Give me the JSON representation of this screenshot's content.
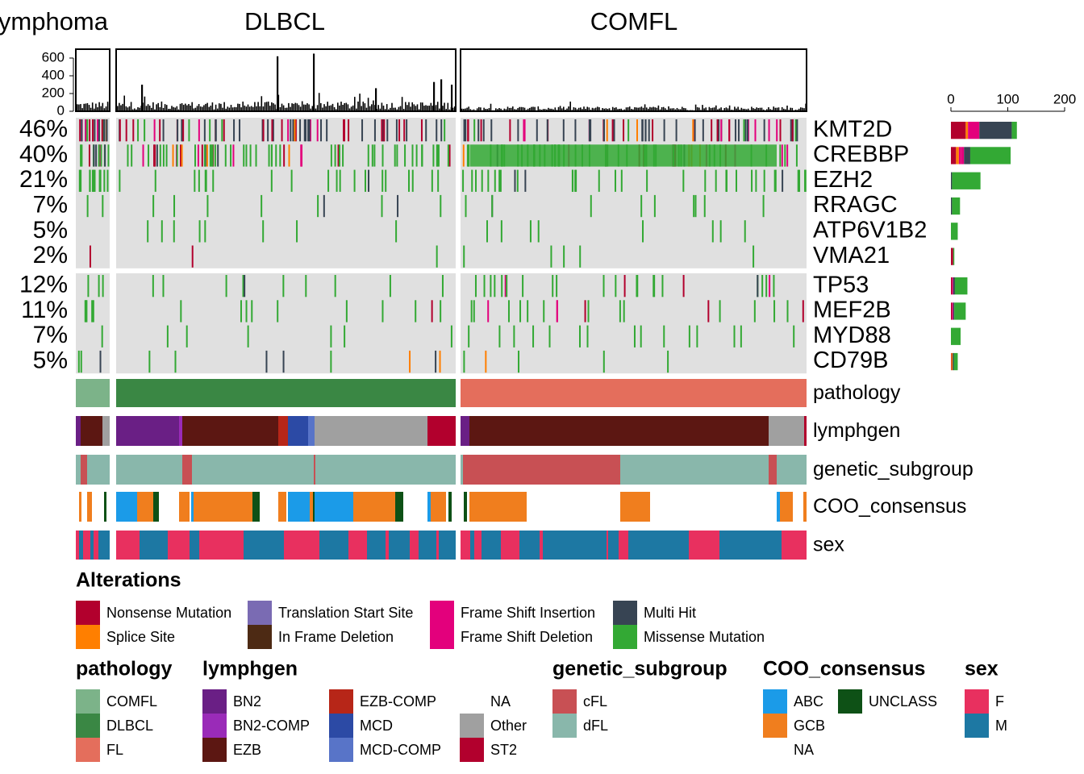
{
  "chart_data": {
    "type": "heatmap",
    "title": "",
    "groups": [
      {
        "label": "llicular lymphoma"
      },
      {
        "label": "DLBCL"
      },
      {
        "label": "COMFL"
      }
    ],
    "top_axis": {
      "ticks": [
        "0",
        "200",
        "400",
        "600"
      ],
      "ylim": [
        0,
        700
      ]
    },
    "right_axis": {
      "ticks": [
        "0",
        "100",
        "200"
      ],
      "xlim": [
        0,
        210
      ]
    },
    "gene_blocks": [
      [
        {
          "gene": "KMT2D",
          "pct": "46%",
          "counts": {
            "Nonsense Mutation": 26,
            "Splice Site": 4,
            "Frame Shift Deletion": 20,
            "Multi Hit": 57,
            "Missense Mutation": 9
          }
        },
        {
          "gene": "CREBBP",
          "pct": "40%",
          "counts": {
            "Nonsense Mutation": 9,
            "Splice Site": 5,
            "Frame Shift Insertion": 4,
            "Frame Shift Deletion": 5,
            "Multi Hit": 11,
            "Missense Mutation": 71
          }
        },
        {
          "gene": "EZH2",
          "pct": "21%",
          "counts": {
            "Multi Hit": 2,
            "Missense Mutation": 50
          }
        },
        {
          "gene": "RRAGC",
          "pct": "7%",
          "counts": {
            "Multi Hit": 2,
            "Missense Mutation": 14
          }
        },
        {
          "gene": "ATP6V1B2",
          "pct": "5%",
          "counts": {
            "Missense Mutation": 12
          }
        },
        {
          "gene": "VMA21",
          "pct": "2%",
          "counts": {
            "Nonsense Mutation": 4,
            "Missense Mutation": 2
          }
        }
      ],
      [
        {
          "gene": "TP53",
          "pct": "12%",
          "counts": {
            "Nonsense Mutation": 2,
            "Frame Shift Deletion": 2,
            "Multi Hit": 3,
            "Missense Mutation": 22
          }
        },
        {
          "gene": "MEF2B",
          "pct": "11%",
          "counts": {
            "Nonsense Mutation": 2,
            "Frame Shift Deletion": 2,
            "Multi Hit": 2,
            "Missense Mutation": 20
          }
        },
        {
          "gene": "MYD88",
          "pct": "7%",
          "counts": {
            "Missense Mutation": 17
          }
        },
        {
          "gene": "CD79B",
          "pct": "5%",
          "counts": {
            "Splice Site": 2,
            "Nonsense Mutation": 1,
            "Multi Hit": 2,
            "Missense Mutation": 7
          }
        }
      ]
    ],
    "annotation_tracks": [
      "pathology",
      "lymphgen",
      "genetic_subgroup",
      "COO_consensus",
      "sex"
    ],
    "legends": {
      "alterations": {
        "title": "Alterations",
        "items": [
          {
            "label": "Nonsense Mutation",
            "color": "#B2002D"
          },
          {
            "label": "Splice Site",
            "color": "#FF7F00"
          },
          {
            "label": "Translation Start Site",
            "color": "#7A6BB3"
          },
          {
            "label": "In Frame Deletion",
            "color": "#4D2A14"
          },
          {
            "label": "Frame Shift Insertion",
            "color": "#E3007C"
          },
          {
            "label": "Frame Shift Deletion",
            "color": "#E3007C"
          },
          {
            "label": "Multi Hit",
            "color": "#374453"
          },
          {
            "label": "Missense Mutation",
            "color": "#33A934"
          }
        ]
      },
      "pathology": {
        "title": "pathology",
        "items": [
          {
            "label": "COMFL",
            "color": "#7CB389"
          },
          {
            "label": "DLBCL",
            "color": "#3A8744"
          },
          {
            "label": "FL",
            "color": "#E46E5C"
          }
        ]
      },
      "lymphgen": {
        "title": "lymphgen",
        "items": [
          {
            "label": "BN2",
            "color": "#6A1F85"
          },
          {
            "label": "BN2-COMP",
            "color": "#9A2BB8"
          },
          {
            "label": "EZB",
            "color": "#5C1712"
          },
          {
            "label": "EZB-COMP",
            "color": "#B72618"
          },
          {
            "label": "MCD",
            "color": "#2C4AA5"
          },
          {
            "label": "MCD-COMP",
            "color": "#5874C8"
          },
          {
            "label": "NA",
            "color": "#FFFFFF"
          },
          {
            "label": "Other",
            "color": "#A0A0A0"
          },
          {
            "label": "ST2",
            "color": "#B2002D"
          }
        ]
      },
      "genetic_subgroup": {
        "title": "genetic_subgroup",
        "items": [
          {
            "label": "cFL",
            "color": "#C85054"
          },
          {
            "label": "dFL",
            "color": "#89B7AB"
          }
        ]
      },
      "coo": {
        "title": "COO_consensus",
        "items": [
          {
            "label": "ABC",
            "color": "#1B9BE8"
          },
          {
            "label": "GCB",
            "color": "#F07E1E"
          },
          {
            "label": "NA",
            "color": "#FFFFFF"
          },
          {
            "label": "UNCLASS",
            "color": "#0E5116"
          }
        ]
      },
      "sex": {
        "title": "sex",
        "items": [
          {
            "label": "F",
            "color": "#E8305F"
          },
          {
            "label": "M",
            "color": "#1D78A3"
          }
        ]
      }
    }
  }
}
